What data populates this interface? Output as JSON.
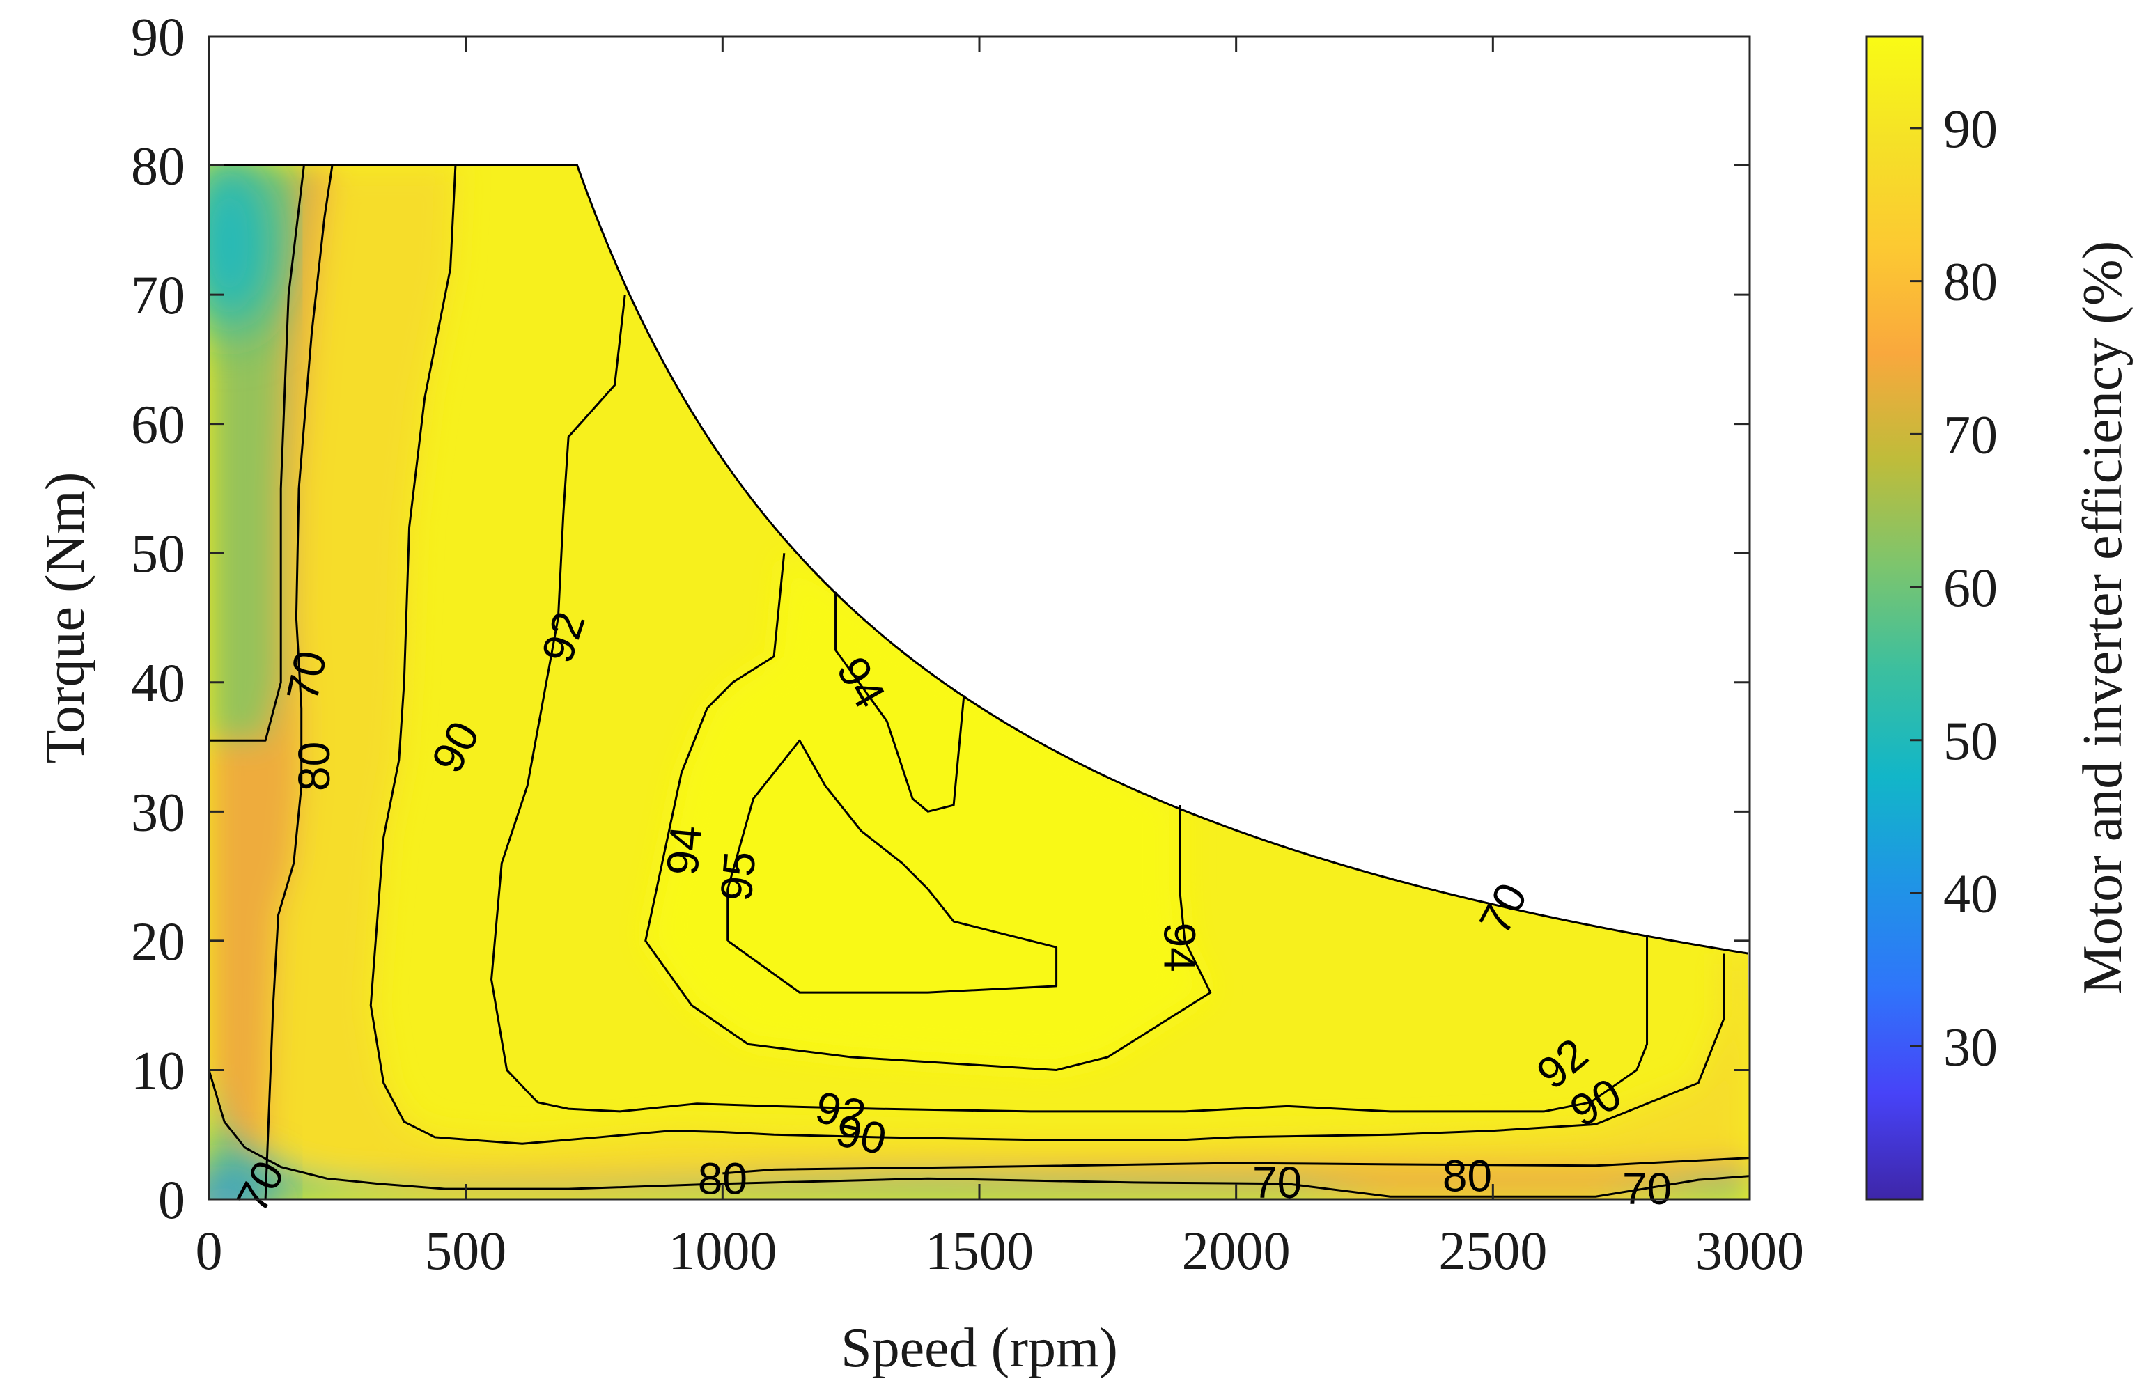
{
  "chart_data": {
    "type": "contour",
    "title": "",
    "xlabel": "Speed (rpm)",
    "ylabel": "Torque (Nm)",
    "colorbar_label": "Motor and inverter efficiency (%)",
    "xlim": [
      0,
      3000
    ],
    "ylim": [
      0,
      90
    ],
    "xticks": [
      0,
      500,
      1000,
      1500,
      2000,
      2500,
      3000
    ],
    "yticks": [
      0,
      10,
      20,
      30,
      40,
      50,
      60,
      70,
      80,
      90
    ],
    "colorbar_range": [
      20,
      96
    ],
    "colorbar_ticks": [
      30,
      40,
      50,
      60,
      70,
      80,
      90
    ],
    "colormap": [
      "#3e26a8",
      "#4743f8",
      "#2f75fa",
      "#1f95e5",
      "#12b6c8",
      "#3bbf9f",
      "#7dc56d",
      "#bfbc3a",
      "#f9a83d",
      "#fcc932",
      "#f5e127",
      "#f9fb15"
    ],
    "envelope": {
      "base_torque": 80,
      "base_speed": 717,
      "max_speed": 3000,
      "torque_at_max_speed": 19
    },
    "contour_levels": [
      70,
      80,
      90,
      92,
      94,
      95
    ],
    "contours": [
      {
        "level": 70,
        "label": "70",
        "points": [
          [
            0,
            35.5
          ],
          [
            110,
            35.5
          ],
          [
            140,
            40
          ],
          [
            140,
            55
          ],
          [
            155,
            70
          ],
          [
            185,
            80
          ]
        ]
      },
      {
        "level": 70,
        "label": "70",
        "points": [
          [
            0,
            10
          ],
          [
            30,
            6
          ],
          [
            70,
            4
          ],
          [
            140,
            2.5
          ],
          [
            230,
            1.6
          ],
          [
            330,
            1.2
          ],
          [
            460,
            0.8
          ],
          [
            700,
            0.8
          ],
          [
            1000,
            1.2
          ],
          [
            1400,
            1.6
          ],
          [
            1800,
            1.3
          ],
          [
            2100,
            1.2
          ],
          [
            2300,
            0.2
          ],
          [
            2700,
            0.2
          ],
          [
            2900,
            1.5
          ],
          [
            3000,
            1.8
          ]
        ]
      },
      {
        "level": 80,
        "label": "80",
        "points": [
          [
            110,
            0
          ],
          [
            115,
            5
          ],
          [
            120,
            10
          ],
          [
            125,
            15
          ],
          [
            135,
            22
          ],
          [
            165,
            26
          ],
          [
            180,
            32
          ],
          [
            180,
            38
          ],
          [
            170,
            45
          ],
          [
            175,
            55
          ],
          [
            200,
            67
          ],
          [
            225,
            76
          ],
          [
            240,
            80
          ]
        ]
      },
      {
        "level": 80,
        "label": "80",
        "points": [
          [
            1000,
            2
          ],
          [
            1100,
            2.3
          ],
          [
            1500,
            2.5
          ],
          [
            2000,
            2.8
          ],
          [
            2300,
            2.7
          ],
          [
            2700,
            2.6
          ],
          [
            3000,
            3.2
          ]
        ]
      },
      {
        "level": 90,
        "label": "90",
        "points": [
          [
            480,
            80
          ],
          [
            470,
            72
          ],
          [
            420,
            62
          ],
          [
            390,
            52
          ],
          [
            380,
            40
          ],
          [
            370,
            34
          ],
          [
            340,
            28
          ],
          [
            315,
            15
          ],
          [
            340,
            9
          ],
          [
            380,
            6
          ],
          [
            440,
            4.8
          ],
          [
            610,
            4.3
          ],
          [
            760,
            4.8
          ],
          [
            900,
            5.3
          ],
          [
            1000,
            5.2
          ],
          [
            1100,
            5.0
          ],
          [
            1300,
            4.8
          ],
          [
            1600,
            4.6
          ],
          [
            1900,
            4.6
          ],
          [
            2000,
            4.8
          ],
          [
            2300,
            5.0
          ],
          [
            2500,
            5.3
          ],
          [
            2700,
            5.8
          ],
          [
            2900,
            9
          ],
          [
            2950,
            14
          ],
          [
            2950,
            19
          ]
        ]
      },
      {
        "level": 92,
        "label": "92",
        "points": [
          [
            810,
            70
          ],
          [
            790,
            63
          ],
          [
            700,
            59
          ],
          [
            690,
            53
          ],
          [
            680,
            45
          ],
          [
            620,
            32
          ],
          [
            570,
            26
          ],
          [
            550,
            17
          ],
          [
            580,
            10
          ],
          [
            640,
            7.5
          ],
          [
            700,
            7.0
          ],
          [
            800,
            6.8
          ],
          [
            950,
            7.4
          ],
          [
            1100,
            7.2
          ],
          [
            1300,
            7.0
          ],
          [
            1600,
            6.8
          ],
          [
            1900,
            6.8
          ],
          [
            2100,
            7.2
          ],
          [
            2300,
            6.8
          ],
          [
            2600,
            6.8
          ],
          [
            2690,
            7.5
          ],
          [
            2780,
            10
          ],
          [
            2800,
            12
          ],
          [
            2800,
            20.3
          ]
        ]
      },
      {
        "level": 94,
        "label": "94",
        "points": [
          [
            1220,
            47
          ],
          [
            1220,
            42.5
          ],
          [
            1320,
            37
          ],
          [
            1370,
            31
          ],
          [
            1400,
            30
          ],
          [
            1450,
            30.5
          ],
          [
            1470,
            39
          ]
        ]
      },
      {
        "level": 94,
        "label": "94",
        "points": [
          [
            1120,
            50
          ],
          [
            1100,
            42
          ],
          [
            1020,
            40
          ],
          [
            970,
            38
          ],
          [
            920,
            33
          ],
          [
            850,
            20
          ],
          [
            940,
            15
          ],
          [
            1050,
            12
          ],
          [
            1250,
            11
          ],
          [
            1650,
            10
          ],
          [
            1750,
            11
          ],
          [
            1850,
            13.5
          ],
          [
            1950,
            16
          ],
          [
            1900,
            20
          ],
          [
            1890,
            24
          ],
          [
            1890,
            30.5
          ]
        ]
      },
      {
        "level": 95,
        "label": "95",
        "points": [
          [
            1010,
            20
          ],
          [
            1010,
            24
          ],
          [
            1060,
            31
          ],
          [
            1150,
            35.5
          ],
          [
            1200,
            32
          ],
          [
            1270,
            28.5
          ],
          [
            1350,
            26
          ],
          [
            1400,
            24
          ],
          [
            1450,
            21.5
          ],
          [
            1650,
            19.5
          ],
          [
            1650,
            16.5
          ],
          [
            1400,
            16
          ],
          [
            1150,
            16
          ],
          [
            1010,
            20
          ]
        ]
      }
    ],
    "contour_label_text": [
      "70",
      "70",
      "70",
      "70",
      "80",
      "80",
      "80",
      "90",
      "90",
      "90",
      "92",
      "92",
      "92",
      "94",
      "94",
      "94",
      "95"
    ]
  }
}
